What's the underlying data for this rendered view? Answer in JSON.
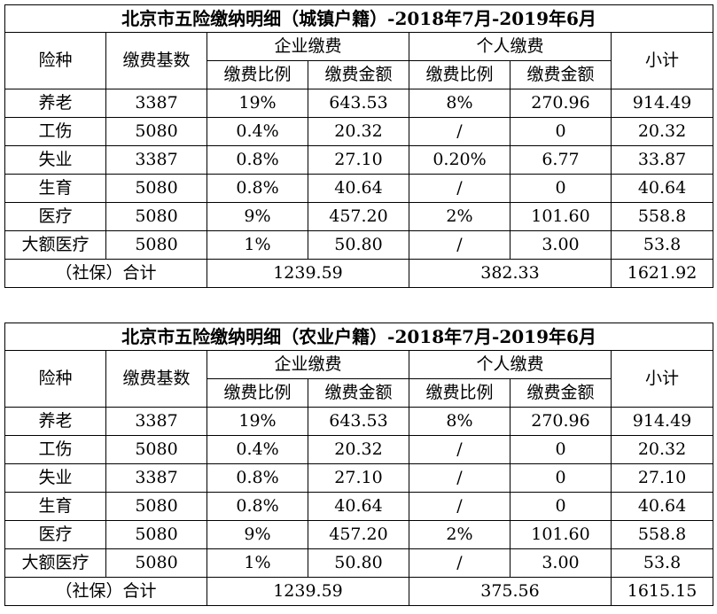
{
  "tables": [
    {
      "title": "北京市五险缴纳明细（城镇户籍）-2018年7月-2019年6月",
      "headers": {
        "type": "险种",
        "base": "缴费基数",
        "company": "企业缴费",
        "personal": "个人缴费",
        "subtotal": "小计",
        "rate": "缴费比例",
        "amount": "缴费金额"
      },
      "rows": [
        {
          "type": "养老",
          "base": "3387",
          "c_rate": "19%",
          "c_amt": "643.53",
          "p_rate": "8%",
          "p_amt": "270.96",
          "subtotal": "914.49"
        },
        {
          "type": "工伤",
          "base": "5080",
          "c_rate": "0.4%",
          "c_amt": "20.32",
          "p_rate": "/",
          "p_amt": "0",
          "subtotal": "20.32"
        },
        {
          "type": "失业",
          "base": "3387",
          "c_rate": "0.8%",
          "c_amt": "27.10",
          "p_rate": "0.20%",
          "p_amt": "6.77",
          "subtotal": "33.87"
        },
        {
          "type": "生育",
          "base": "5080",
          "c_rate": "0.8%",
          "c_amt": "40.64",
          "p_rate": "/",
          "p_amt": "0",
          "subtotal": "40.64"
        },
        {
          "type": "医疗",
          "base": "5080",
          "c_rate": "9%",
          "c_amt": "457.20",
          "p_rate": "2%",
          "p_amt": "101.60",
          "subtotal": "558.8"
        },
        {
          "type": "大额医疗",
          "base": "5080",
          "c_rate": "1%",
          "c_amt": "50.80",
          "p_rate": "/",
          "p_amt": "3.00",
          "subtotal": "53.8"
        }
      ],
      "total": {
        "label": "（社保）合计",
        "company": "1239.59",
        "personal": "382.33",
        "subtotal": "1621.92"
      }
    },
    {
      "title": "北京市五险缴纳明细（农业户籍）-2018年7月-2019年6月",
      "headers": {
        "type": "险种",
        "base": "缴费基数",
        "company": "企业缴费",
        "personal": "个人缴费",
        "subtotal": "小计",
        "rate": "缴费比例",
        "amount": "缴费金额"
      },
      "rows": [
        {
          "type": "养老",
          "base": "3387",
          "c_rate": "19%",
          "c_amt": "643.53",
          "p_rate": "8%",
          "p_amt": "270.96",
          "subtotal": "914.49"
        },
        {
          "type": "工伤",
          "base": "5080",
          "c_rate": "0.4%",
          "c_amt": "20.32",
          "p_rate": "/",
          "p_amt": "0",
          "subtotal": "20.32"
        },
        {
          "type": "失业",
          "base": "3387",
          "c_rate": "0.8%",
          "c_amt": "27.10",
          "p_rate": "/",
          "p_amt": "0",
          "subtotal": "27.10"
        },
        {
          "type": "生育",
          "base": "5080",
          "c_rate": "0.8%",
          "c_amt": "40.64",
          "p_rate": "/",
          "p_amt": "0",
          "subtotal": "40.64"
        },
        {
          "type": "医疗",
          "base": "5080",
          "c_rate": "9%",
          "c_amt": "457.20",
          "p_rate": "2%",
          "p_amt": "101.60",
          "subtotal": "558.8"
        },
        {
          "type": "大额医疗",
          "base": "5080",
          "c_rate": "1%",
          "c_amt": "50.80",
          "p_rate": "/",
          "p_amt": "3.00",
          "subtotal": "53.8"
        }
      ],
      "total": {
        "label": "（社保）合计",
        "company": "1239.59",
        "personal": "375.56",
        "subtotal": "1615.15"
      }
    }
  ]
}
